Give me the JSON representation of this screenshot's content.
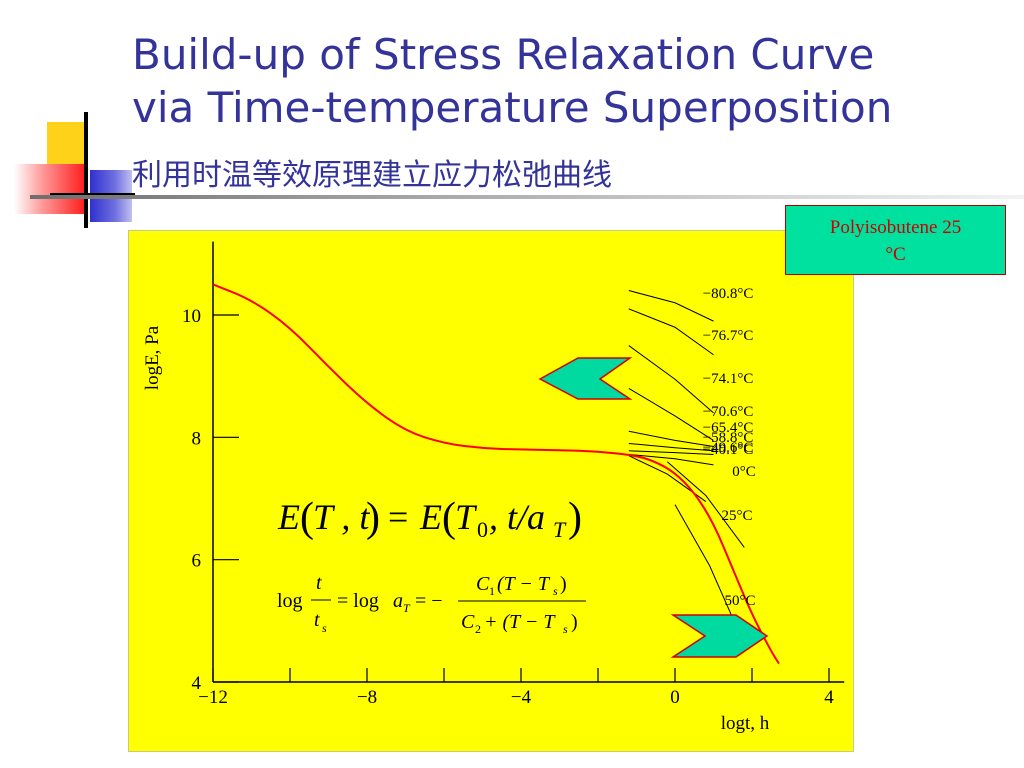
{
  "slide": {
    "title_line1": "Build-up of Stress Relaxation Curve",
    "title_line2": "via Time-temperature Superposition",
    "subtitle": "利用时温等效原理建立应力松弛曲线",
    "colors": {
      "title": "#333399",
      "panel": "#ffff00",
      "curve": "#ff0000",
      "arrow": "#00d9a0",
      "badge": "#00e1a0",
      "badge_text": "#cc0000"
    }
  },
  "legend_box": {
    "line1": "Polyisobutene 25",
    "line2": "°C"
  },
  "equations": {
    "main": {
      "lhs_E": "E",
      "lhs_args": "T , t",
      "eq": "=",
      "rhs_E": "E",
      "rhs_T0": "T",
      "rhs_sub0": "0",
      "rhs_t": ", t/a",
      "rhs_subT": "T"
    },
    "shift": {
      "log": "log",
      "t": "t",
      "ts": "t",
      "ts_sub": "s",
      "eq1": "= log",
      "aT": "a",
      "aT_sub": "T",
      "eq2": "= −",
      "num": "C",
      "num_sub": "1",
      "num_paren": "(T − T",
      "num_paren_sub": "s",
      "num_close": ")",
      "den": "C",
      "den_sub": "2",
      "den_plus": "+ (T − T",
      "den_paren_sub": "s",
      "den_close": ")"
    }
  },
  "chart_data": {
    "type": "line",
    "title": "",
    "xlabel": "logt, h",
    "ylabel": "logE, Pa",
    "xlim": [
      -12,
      4.5
    ],
    "ylim": [
      4,
      11.2
    ],
    "x_ticks": [
      -12,
      -10,
      -8,
      -6,
      -4,
      -2,
      0,
      2,
      4
    ],
    "x_tick_labels": [
      "−12",
      "−8",
      "−4",
      "0",
      "4"
    ],
    "x_tick_label_values": [
      -12,
      -8,
      -4,
      0,
      4
    ],
    "y_ticks": [
      4,
      6,
      8,
      10
    ],
    "y_tick_labels": [
      "4",
      "6",
      "8",
      "10"
    ],
    "series": [
      {
        "color": "#ff0000",
        "x": [
          -12.0,
          -11.0,
          -10.0,
          -9.0,
          -8.0,
          -7.0,
          -6.0,
          -5.0,
          -4.0,
          -3.0,
          -2.0,
          -1.0,
          -0.5,
          0.0,
          0.5,
          1.0,
          1.5,
          2.0,
          2.5,
          2.7
        ],
        "y": [
          10.5,
          10.25,
          9.8,
          9.15,
          8.55,
          8.1,
          7.9,
          7.82,
          7.8,
          7.79,
          7.77,
          7.7,
          7.6,
          7.42,
          7.1,
          6.6,
          5.85,
          5.1,
          4.5,
          4.3
        ]
      }
    ],
    "segments": [
      {
        "label": "−80.8°C",
        "x": [
          -1.2,
          0.0,
          1.0
        ],
        "y": [
          10.4,
          10.2,
          9.9
        ]
      },
      {
        "label": "−76.7°C",
        "x": [
          -1.2,
          0.0,
          1.0
        ],
        "y": [
          10.1,
          9.8,
          9.35
        ]
      },
      {
        "label": "−74.1°C",
        "x": [
          -1.2,
          0.0,
          1.0
        ],
        "y": [
          9.5,
          8.95,
          8.4
        ]
      },
      {
        "label": "−70.6°C",
        "x": [
          -1.2,
          0.0,
          1.0
        ],
        "y": [
          8.8,
          8.35,
          7.95
        ]
      },
      {
        "label": "−65.4°C",
        "x": [
          -1.2,
          0.0,
          1.0
        ],
        "y": [
          8.1,
          7.95,
          7.85
        ]
      },
      {
        "label": "−58.8°C",
        "x": [
          -1.2,
          0.0,
          1.0
        ],
        "y": [
          7.9,
          7.83,
          7.78
        ]
      },
      {
        "label": "−49.6°C",
        "x": [
          -1.2,
          0.0,
          1.0
        ],
        "y": [
          7.78,
          7.75,
          7.72
        ]
      },
      {
        "label": "−40.1°C",
        "x": [
          -1.2,
          0.0,
          1.0
        ],
        "y": [
          7.72,
          7.65,
          7.55
        ]
      },
      {
        "label": "0°C",
        "x": [
          -1.2,
          -0.2,
          0.8
        ],
        "y": [
          7.7,
          7.4,
          6.95
        ]
      },
      {
        "label": "25°C",
        "x": [
          -0.2,
          0.8,
          1.8
        ],
        "y": [
          7.6,
          7.05,
          6.2
        ]
      },
      {
        "label": "50°C",
        "x": [
          0.0,
          0.9,
          1.6
        ],
        "y": [
          6.9,
          5.9,
          4.9
        ]
      }
    ],
    "grid": false,
    "legend": "none"
  }
}
